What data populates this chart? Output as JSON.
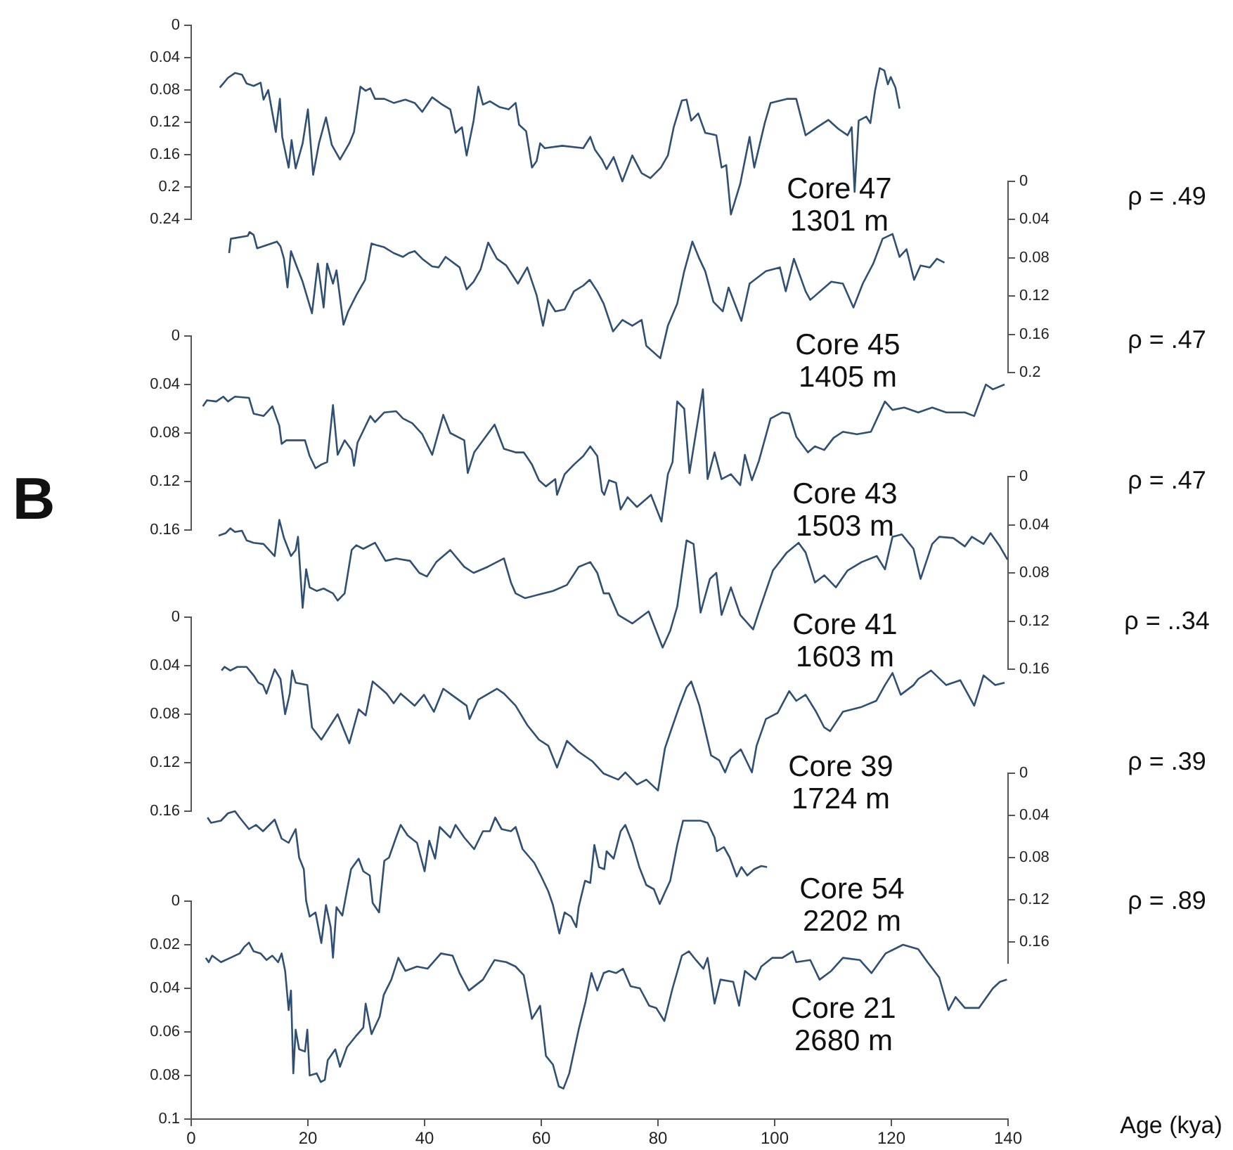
{
  "chart_data": [
    {
      "type": "line",
      "color": "#2f4f75",
      "xlim": [
        0,
        140
      ],
      "xticks": [
        0,
        20,
        40,
        60,
        80,
        100,
        120,
        140
      ],
      "ylim": [
        0.24,
        0
      ],
      "yticks": [
        0,
        0.04,
        0.08,
        0.12,
        0.16,
        0.2,
        0.24
      ],
      "tick_labels": "y",
      "annotations": [
        "Core 47\n1301 m",
        "ρ = .49"
      ],
      "x": [
        4.9,
        6.3,
        7.5,
        8.7,
        9.5,
        10.7,
        11.9,
        12.4,
        13.2,
        14.5,
        15.2,
        15.6,
        16.7,
        17.2,
        17.9,
        19.1,
        20.0,
        20.9,
        21.9,
        23.1,
        24.1,
        25.5,
        27.1,
        27.9,
        29.0,
        29.9,
        30.7,
        31.5,
        33.1,
        34.7,
        36.7,
        38.3,
        39.6,
        41.3,
        42.8,
        44.4,
        45.3,
        46.4,
        47.2,
        48.4,
        49.2,
        50.0,
        51.2,
        52.8,
        54.4,
        55.6,
        56.2,
        57.4,
        58.4,
        59.2,
        59.8,
        60.6,
        63.6,
        67.2,
        68.4,
        69.2,
        70.4,
        71.2,
        72.4,
        73.9,
        75.6,
        77.2,
        78.7,
        80.5,
        81.7,
        82.7,
        84.1,
        84.9,
        85.7,
        86.9,
        88.1,
        90.0,
        90.9,
        91.7,
        92.5,
        94.1,
        95.7,
        96.5,
        98.3,
        99.3,
        102.1,
        103.7,
        105.3,
        107.3,
        109.2,
        110.9,
        112.5,
        113.2,
        113.7,
        114.4,
        115.7,
        116.4,
        117.2,
        118.0,
        118.8,
        119.4,
        119.9,
        120.7,
        121.4
      ],
      "values": [
        0.077,
        0.065,
        0.059,
        0.061,
        0.072,
        0.075,
        0.071,
        0.092,
        0.08,
        0.132,
        0.091,
        0.138,
        0.176,
        0.142,
        0.177,
        0.146,
        0.104,
        0.185,
        0.146,
        0.114,
        0.148,
        0.166,
        0.146,
        0.132,
        0.076,
        0.081,
        0.078,
        0.091,
        0.091,
        0.096,
        0.092,
        0.096,
        0.107,
        0.089,
        0.097,
        0.104,
        0.133,
        0.126,
        0.161,
        0.118,
        0.076,
        0.098,
        0.094,
        0.101,
        0.104,
        0.096,
        0.123,
        0.131,
        0.176,
        0.168,
        0.146,
        0.152,
        0.149,
        0.152,
        0.138,
        0.154,
        0.166,
        0.178,
        0.163,
        0.193,
        0.161,
        0.183,
        0.189,
        0.176,
        0.161,
        0.126,
        0.093,
        0.092,
        0.118,
        0.109,
        0.133,
        0.136,
        0.176,
        0.173,
        0.234,
        0.196,
        0.138,
        0.176,
        0.121,
        0.096,
        0.091,
        0.091,
        0.136,
        0.126,
        0.117,
        0.128,
        0.136,
        0.126,
        0.206,
        0.118,
        0.113,
        0.121,
        0.081,
        0.053,
        0.056,
        0.073,
        0.064,
        0.077,
        0.103
      ]
    },
    {
      "type": "line",
      "xlim": [
        0,
        140
      ],
      "xticks": [
        0,
        20,
        40,
        60,
        80,
        100,
        120,
        140
      ],
      "y2lim": [
        0.2,
        0
      ],
      "y2ticks": [
        0,
        0.04,
        0.08,
        0.12,
        0.16,
        0.2
      ],
      "tick_labels": "y",
      "annotations": [
        "Core 45\n1405 m",
        "ρ = .47"
      ],
      "series": [
        {
          "color": "#2f4f75",
          "axis": "y2",
          "x": [
            6.5,
            6.8,
            9.7,
            10.0,
            10.7,
            11.3,
            14.7,
            15.3,
            15.9,
            16.5,
            17.1,
            17.9,
            19.1,
            20.7,
            21.7,
            22.7,
            23.3,
            24.3,
            24.9,
            26.1,
            26.9,
            28.3,
            29.8,
            30.9,
            31.9,
            33.1,
            34.7,
            36.3,
            37.3,
            38.3,
            39.6,
            41.3,
            42.4,
            43.6,
            46.0,
            47.2,
            48.4,
            49.6,
            50.9,
            52.4,
            54.0,
            56.0,
            57.6,
            59.2,
            60.3,
            61.2,
            62.4,
            64.0,
            65.6,
            67.2,
            68.3,
            69.6,
            70.7,
            72.3,
            73.9,
            75.6,
            77.2,
            78.0,
            80.4,
            81.7,
            83.3,
            84.5,
            85.9,
            87.1,
            88.1,
            89.5,
            91.1,
            92.1,
            94.3,
            95.7,
            98.5,
            100.9,
            101.9,
            103.3,
            105.3,
            106.1,
            109.7,
            111.7,
            113.5,
            115.1,
            116.9,
            118.5,
            120.2,
            121.4,
            122.6,
            123.9,
            125.0,
            126.6,
            127.8,
            129.1
          ],
          "values": [
            0.075,
            0.06,
            0.057,
            0.053,
            0.056,
            0.07,
            0.063,
            0.068,
            0.081,
            0.111,
            0.073,
            0.086,
            0.105,
            0.138,
            0.086,
            0.132,
            0.086,
            0.107,
            0.093,
            0.15,
            0.136,
            0.119,
            0.103,
            0.065,
            0.067,
            0.069,
            0.075,
            0.079,
            0.075,
            0.073,
            0.081,
            0.089,
            0.09,
            0.079,
            0.09,
            0.113,
            0.105,
            0.092,
            0.064,
            0.081,
            0.088,
            0.107,
            0.09,
            0.119,
            0.151,
            0.124,
            0.136,
            0.134,
            0.115,
            0.109,
            0.103,
            0.115,
            0.128,
            0.157,
            0.145,
            0.151,
            0.145,
            0.172,
            0.185,
            0.151,
            0.128,
            0.094,
            0.063,
            0.081,
            0.094,
            0.126,
            0.136,
            0.111,
            0.146,
            0.107,
            0.094,
            0.09,
            0.115,
            0.081,
            0.115,
            0.124,
            0.105,
            0.107,
            0.132,
            0.107,
            0.086,
            0.06,
            0.055,
            0.079,
            0.071,
            0.103,
            0.088,
            0.09,
            0.081,
            0.085
          ]
        }
      ]
    },
    {
      "type": "line",
      "color": "#2f4f75",
      "xlim": [
        0,
        140
      ],
      "xticks": [
        0,
        20,
        40,
        60,
        80,
        100,
        120,
        140
      ],
      "ylim": [
        0.16,
        0
      ],
      "yticks": [
        0,
        0.04,
        0.08,
        0.12,
        0.16
      ],
      "tick_labels": "y",
      "annotations": [
        "Core 43\n1503 m",
        "ρ = .47",
        "B"
      ],
      "x": [
        2.0,
        2.7,
        4.3,
        5.5,
        6.3,
        7.5,
        9.9,
        10.7,
        12.4,
        13.9,
        15.1,
        15.5,
        16.3,
        19.5,
        20.3,
        21.3,
        22.3,
        23.3,
        24.3,
        25.1,
        26.3,
        27.5,
        27.9,
        28.5,
        30.7,
        31.5,
        33.1,
        35.1,
        36.3,
        37.9,
        39.6,
        40.4,
        41.3,
        43.2,
        44.4,
        46.8,
        47.4,
        48.5,
        52.0,
        53.6,
        55.6,
        57.0,
        58.4,
        59.6,
        60.8,
        62.4,
        62.7,
        64.0,
        65.6,
        67.2,
        68.4,
        69.6,
        70.4,
        70.8,
        71.6,
        72.8,
        73.6,
        74.8,
        76.4,
        78.8,
        80.6,
        81.7,
        82.5,
        83.3,
        84.5,
        85.4,
        87.7,
        88.5,
        89.7,
        90.9,
        92.5,
        94.1,
        94.9,
        96.1,
        97.3,
        99.3,
        101.3,
        102.5,
        103.7,
        105.7,
        106.9,
        108.5,
        110.1,
        111.7,
        114.1,
        116.5,
        118.9,
        120.2,
        122.2,
        124.6,
        127.0,
        129.4,
        132.6,
        134.2,
        136.2,
        137.4,
        139.4
      ],
      "values": [
        0.058,
        0.053,
        0.054,
        0.05,
        0.054,
        0.05,
        0.051,
        0.064,
        0.066,
        0.058,
        0.074,
        0.089,
        0.086,
        0.086,
        0.099,
        0.109,
        0.106,
        0.104,
        0.057,
        0.098,
        0.086,
        0.094,
        0.107,
        0.088,
        0.066,
        0.071,
        0.063,
        0.062,
        0.068,
        0.072,
        0.081,
        0.089,
        0.098,
        0.065,
        0.08,
        0.086,
        0.113,
        0.096,
        0.073,
        0.093,
        0.096,
        0.096,
        0.106,
        0.119,
        0.124,
        0.118,
        0.131,
        0.114,
        0.106,
        0.099,
        0.091,
        0.099,
        0.128,
        0.131,
        0.119,
        0.121,
        0.143,
        0.133,
        0.141,
        0.131,
        0.153,
        0.114,
        0.104,
        0.054,
        0.06,
        0.113,
        0.044,
        0.118,
        0.096,
        0.118,
        0.114,
        0.123,
        0.098,
        0.119,
        0.103,
        0.068,
        0.063,
        0.064,
        0.083,
        0.096,
        0.091,
        0.094,
        0.084,
        0.079,
        0.081,
        0.079,
        0.054,
        0.061,
        0.059,
        0.063,
        0.059,
        0.063,
        0.063,
        0.066,
        0.04,
        0.044,
        0.04
      ]
    },
    {
      "type": "line",
      "xlim": [
        0,
        140
      ],
      "xticks": [
        0,
        20,
        40,
        60,
        80,
        100,
        120,
        140
      ],
      "y2lim": [
        0.16,
        0
      ],
      "y2ticks": [
        0,
        0.04,
        0.08,
        0.12,
        0.16
      ],
      "tick_labels": "y",
      "annotations": [
        "Core 41\n1603 m",
        "ρ = ..34"
      ],
      "series": [
        {
          "color": "#2f4f75",
          "axis": "y2",
          "x": [
            4.7,
            5.9,
            6.7,
            7.5,
            8.7,
            9.5,
            10.7,
            12.4,
            14.3,
            15.1,
            15.9,
            17.1,
            17.9,
            18.3,
            19.1,
            19.7,
            20.3,
            21.5,
            22.7,
            24.3,
            25.1,
            26.3,
            27.5,
            28.3,
            29.5,
            31.5,
            33.3,
            35.1,
            37.5,
            39.1,
            40.4,
            42.0,
            44.4,
            46.8,
            48.4,
            50.8,
            53.6,
            54.8,
            55.6,
            57.2,
            59.6,
            62.0,
            64.4,
            66.4,
            68.4,
            69.6,
            70.7,
            71.6,
            73.2,
            75.6,
            78.4,
            80.8,
            82.1,
            83.3,
            84.9,
            86.1,
            87.3,
            88.9,
            90.0,
            90.9,
            92.5,
            94.1,
            96.3,
            97.3,
            99.7,
            102.1,
            104.1,
            105.3,
            106.9,
            108.5,
            110.5,
            112.5,
            114.9,
            117.5,
            118.9,
            120.2,
            121.8,
            123.8,
            125.0,
            127.0,
            128.2,
            130.6,
            132.6,
            133.8,
            135.8,
            137.0,
            138.6,
            139.9
          ],
          "values": [
            0.049,
            0.047,
            0.043,
            0.046,
            0.045,
            0.053,
            0.055,
            0.056,
            0.066,
            0.036,
            0.051,
            0.066,
            0.061,
            0.05,
            0.109,
            0.077,
            0.092,
            0.095,
            0.093,
            0.097,
            0.103,
            0.097,
            0.061,
            0.057,
            0.06,
            0.055,
            0.07,
            0.068,
            0.07,
            0.08,
            0.083,
            0.071,
            0.061,
            0.075,
            0.08,
            0.075,
            0.068,
            0.088,
            0.097,
            0.101,
            0.098,
            0.095,
            0.09,
            0.075,
            0.071,
            0.08,
            0.097,
            0.097,
            0.115,
            0.122,
            0.112,
            0.142,
            0.128,
            0.108,
            0.053,
            0.056,
            0.113,
            0.085,
            0.08,
            0.115,
            0.092,
            0.115,
            0.127,
            0.112,
            0.078,
            0.063,
            0.055,
            0.063,
            0.088,
            0.082,
            0.092,
            0.078,
            0.071,
            0.066,
            0.077,
            0.05,
            0.048,
            0.06,
            0.085,
            0.056,
            0.05,
            0.051,
            0.058,
            0.05,
            0.056,
            0.047,
            0.058,
            0.069
          ]
        }
      ]
    },
    {
      "type": "line",
      "color": "#2f4f75",
      "xlim": [
        0,
        140
      ],
      "xticks": [
        0,
        20,
        40,
        60,
        80,
        100,
        120,
        140
      ],
      "ylim": [
        0.16,
        0
      ],
      "yticks": [
        0,
        0.04,
        0.08,
        0.12,
        0.16
      ],
      "tick_labels": "y",
      "annotations": [
        "Core 39\n1724 m",
        "ρ = .39"
      ],
      "x": [
        5.2,
        5.7,
        6.7,
        7.9,
        9.5,
        10.7,
        11.5,
        12.3,
        12.9,
        14.3,
        15.3,
        16.1,
        16.9,
        17.3,
        17.9,
        19.9,
        20.7,
        22.3,
        25.1,
        27.1,
        28.7,
        29.9,
        31.1,
        32.3,
        33.5,
        34.7,
        35.9,
        38.3,
        39.9,
        41.6,
        43.2,
        45.2,
        47.2,
        47.7,
        49.2,
        52.4,
        53.6,
        55.6,
        57.6,
        59.6,
        61.2,
        62.7,
        64.4,
        66.4,
        68.8,
        70.7,
        73.2,
        74.4,
        76.4,
        78.0,
        80.0,
        81.2,
        82.4,
        83.7,
        84.9,
        85.7,
        87.1,
        89.1,
        90.5,
        91.5,
        92.5,
        94.2,
        96.1,
        96.9,
        98.5,
        100.5,
        102.5,
        103.7,
        105.3,
        107.1,
        108.5,
        109.5,
        111.7,
        114.9,
        117.4,
        118.9,
        120.2,
        121.6,
        123.8,
        124.6,
        126.8,
        129.4,
        131.8,
        134.2,
        135.8,
        137.8,
        139.4
      ],
      "values": [
        0.044,
        0.041,
        0.044,
        0.041,
        0.041,
        0.048,
        0.054,
        0.056,
        0.063,
        0.043,
        0.051,
        0.08,
        0.063,
        0.044,
        0.054,
        0.056,
        0.091,
        0.101,
        0.08,
        0.104,
        0.076,
        0.081,
        0.053,
        0.058,
        0.063,
        0.071,
        0.063,
        0.073,
        0.064,
        0.078,
        0.059,
        0.066,
        0.073,
        0.084,
        0.068,
        0.059,
        0.063,
        0.073,
        0.089,
        0.101,
        0.106,
        0.124,
        0.102,
        0.111,
        0.119,
        0.129,
        0.134,
        0.128,
        0.138,
        0.134,
        0.143,
        0.108,
        0.091,
        0.073,
        0.058,
        0.053,
        0.073,
        0.114,
        0.118,
        0.128,
        0.116,
        0.109,
        0.128,
        0.106,
        0.084,
        0.079,
        0.061,
        0.069,
        0.064,
        0.078,
        0.091,
        0.094,
        0.078,
        0.074,
        0.069,
        0.056,
        0.046,
        0.064,
        0.056,
        0.051,
        0.044,
        0.056,
        0.052,
        0.073,
        0.048,
        0.056,
        0.054
      ]
    },
    {
      "type": "line",
      "xlim": [
        0,
        140
      ],
      "xticks": [
        0,
        20,
        40,
        60,
        80,
        100,
        120,
        140
      ],
      "y2lim": [
        0.18,
        0
      ],
      "y2ticks": [
        0,
        0.04,
        0.08,
        0.12,
        0.16
      ],
      "tick_labels": "y",
      "annotations": [
        "Core 54\n2202 m",
        "ρ = .89"
      ],
      "series": [
        {
          "color": "#2f4f75",
          "axis": "y2",
          "x": [
            2.8,
            3.4,
            5.1,
            6.3,
            7.5,
            8.3,
            9.9,
            11.1,
            12.3,
            14.3,
            15.5,
            16.7,
            17.9,
            18.5,
            19.3,
            19.7,
            20.3,
            21.3,
            22.3,
            23.1,
            23.9,
            24.3,
            24.9,
            25.9,
            26.6,
            27.4,
            28.7,
            29.5,
            30.6,
            31.1,
            32.2,
            33.1,
            33.9,
            35.1,
            35.9,
            37.1,
            38.7,
            40.0,
            40.8,
            41.8,
            42.6,
            44.4,
            45.3,
            46.8,
            48.5,
            50.0,
            51.2,
            52.1,
            53.2,
            54.8,
            55.6,
            56.8,
            58.8,
            60.0,
            61.2,
            62.0,
            63.1,
            64.0,
            65.1,
            66.0,
            66.4,
            67.5,
            68.4,
            69.1,
            69.9,
            70.8,
            71.2,
            72.4,
            73.6,
            74.4,
            75.6,
            76.8,
            78.0,
            79.3,
            80.3,
            81.1,
            82.1,
            83.3,
            84.3,
            85.7,
            87.3,
            88.5,
            89.7,
            90.1,
            91.3,
            92.3,
            93.5,
            94.3,
            95.3,
            96.5,
            97.7,
            98.7
          ],
          "values": [
            0.042,
            0.047,
            0.045,
            0.038,
            0.036,
            0.042,
            0.053,
            0.049,
            0.055,
            0.044,
            0.062,
            0.066,
            0.053,
            0.08,
            0.091,
            0.121,
            0.136,
            0.132,
            0.161,
            0.125,
            0.146,
            0.175,
            0.127,
            0.135,
            0.114,
            0.091,
            0.081,
            0.093,
            0.097,
            0.123,
            0.132,
            0.083,
            0.08,
            0.061,
            0.049,
            0.059,
            0.066,
            0.093,
            0.064,
            0.081,
            0.051,
            0.061,
            0.049,
            0.061,
            0.072,
            0.055,
            0.055,
            0.042,
            0.053,
            0.055,
            0.051,
            0.072,
            0.085,
            0.098,
            0.112,
            0.125,
            0.152,
            0.132,
            0.136,
            0.146,
            0.127,
            0.102,
            0.104,
            0.068,
            0.089,
            0.091,
            0.074,
            0.081,
            0.055,
            0.049,
            0.066,
            0.089,
            0.106,
            0.11,
            0.124,
            0.114,
            0.102,
            0.068,
            0.045,
            0.045,
            0.045,
            0.047,
            0.061,
            0.074,
            0.07,
            0.08,
            0.098,
            0.089,
            0.097,
            0.091,
            0.088,
            0.089
          ]
        }
      ]
    },
    {
      "type": "line",
      "color": "#2f4f75",
      "xlim": [
        0,
        140
      ],
      "xticks": [
        0,
        20,
        40,
        60,
        80,
        100,
        120,
        140
      ],
      "ylim": [
        0.1,
        0
      ],
      "yticks": [
        0,
        0.02,
        0.04,
        0.06,
        0.08,
        0.1
      ],
      "xlabel": "Age (kya)",
      "annotations": [
        "Core 21\n2680 m"
      ],
      "x": [
        2.5,
        3.0,
        3.6,
        5.1,
        6.7,
        8.3,
        9.1,
        9.9,
        10.7,
        11.9,
        12.9,
        13.9,
        14.9,
        15.5,
        16.1,
        16.7,
        17.1,
        17.5,
        17.9,
        18.5,
        19.5,
        19.9,
        20.3,
        21.5,
        22.2,
        22.9,
        23.4,
        24.7,
        25.5,
        26.7,
        28.2,
        29.5,
        29.9,
        30.9,
        32.3,
        33.0,
        34.3,
        35.5,
        36.7,
        38.7,
        40.5,
        42.8,
        44.8,
        46.0,
        47.6,
        50.0,
        52.0,
        54.0,
        55.6,
        57.0,
        58.4,
        59.8,
        60.8,
        62.0,
        63.0,
        63.8,
        64.8,
        66.4,
        67.6,
        68.6,
        69.6,
        70.7,
        71.6,
        72.8,
        74.0,
        75.3,
        76.9,
        78.5,
        79.7,
        81.1,
        82.5,
        84.1,
        85.3,
        86.5,
        87.8,
        88.5,
        89.7,
        90.7,
        92.9,
        93.9,
        94.9,
        96.7,
        97.7,
        99.6,
        101.3,
        103.1,
        103.7,
        106.1,
        107.7,
        109.7,
        111.7,
        114.6,
        116.6,
        119.0,
        122.0,
        124.6,
        126.2,
        128.2,
        129.8,
        131.0,
        132.6,
        135.0,
        137.4,
        138.6,
        139.8
      ],
      "values": [
        0.026,
        0.028,
        0.025,
        0.028,
        0.026,
        0.024,
        0.021,
        0.019,
        0.023,
        0.024,
        0.027,
        0.025,
        0.028,
        0.024,
        0.032,
        0.05,
        0.041,
        0.079,
        0.059,
        0.068,
        0.069,
        0.059,
        0.08,
        0.079,
        0.083,
        0.082,
        0.073,
        0.068,
        0.076,
        0.067,
        0.062,
        0.058,
        0.047,
        0.061,
        0.053,
        0.043,
        0.036,
        0.026,
        0.032,
        0.03,
        0.031,
        0.024,
        0.025,
        0.033,
        0.041,
        0.036,
        0.027,
        0.028,
        0.03,
        0.034,
        0.054,
        0.048,
        0.071,
        0.075,
        0.085,
        0.086,
        0.079,
        0.059,
        0.046,
        0.033,
        0.041,
        0.033,
        0.032,
        0.033,
        0.031,
        0.039,
        0.04,
        0.048,
        0.049,
        0.055,
        0.04,
        0.025,
        0.023,
        0.027,
        0.031,
        0.026,
        0.047,
        0.036,
        0.037,
        0.048,
        0.032,
        0.036,
        0.03,
        0.026,
        0.026,
        0.023,
        0.028,
        0.027,
        0.036,
        0.032,
        0.026,
        0.027,
        0.033,
        0.024,
        0.02,
        0.022,
        0.028,
        0.035,
        0.05,
        0.044,
        0.049,
        0.049,
        0.04,
        0.037,
        0.036
      ]
    }
  ]
}
